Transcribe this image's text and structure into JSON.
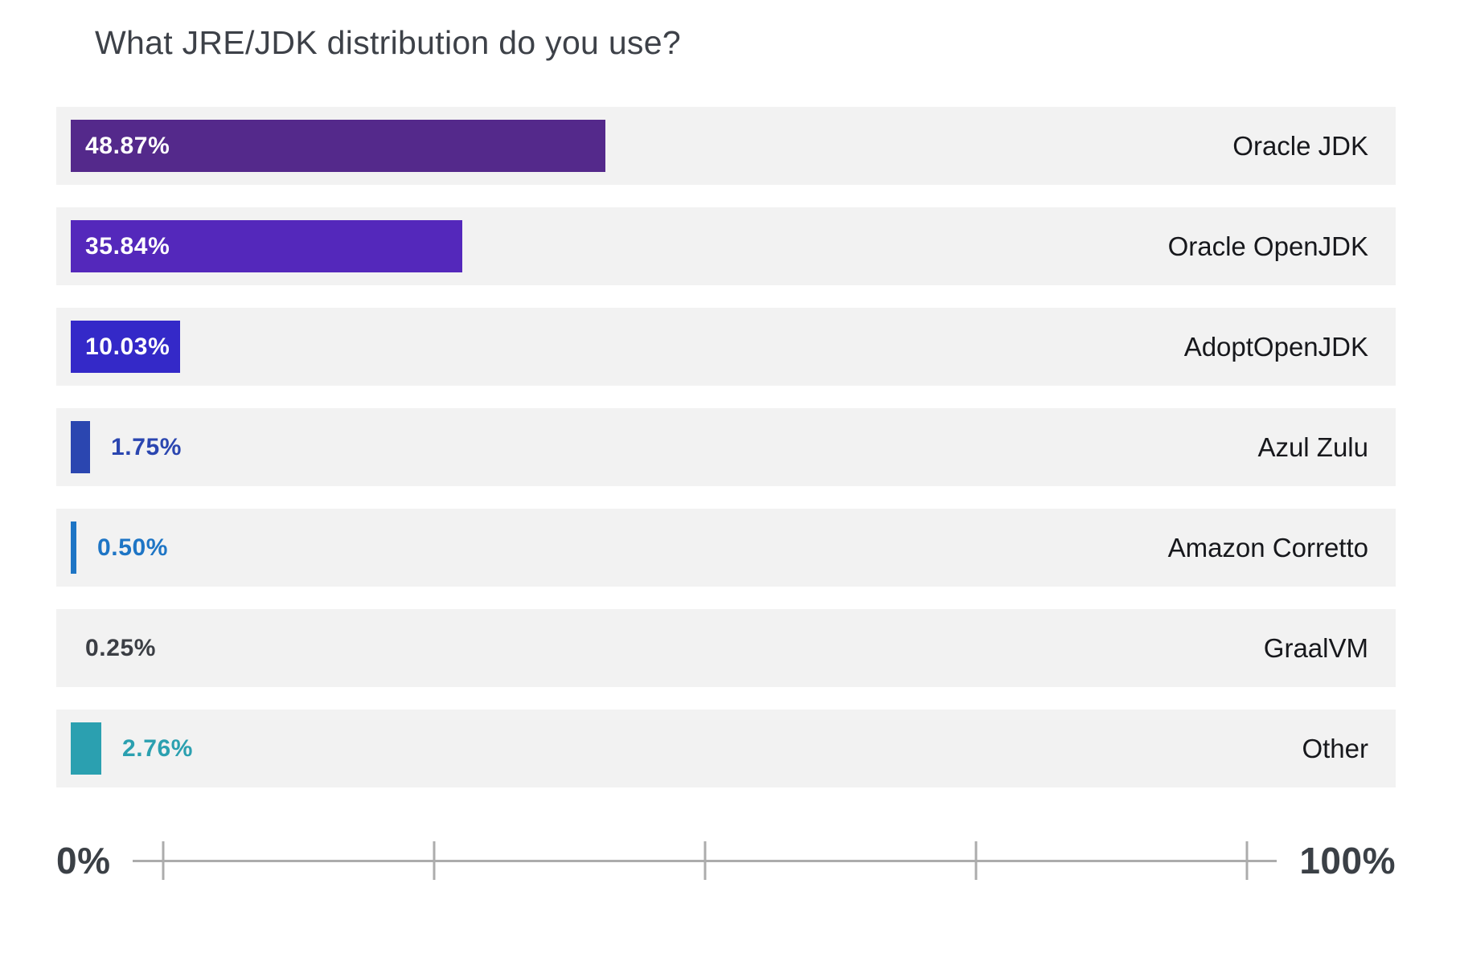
{
  "chart_data": {
    "type": "bar",
    "orientation": "horizontal",
    "title": "What JRE/JDK distribution do you use?",
    "xlabel": "",
    "ylabel": "",
    "categories": [
      "Oracle JDK",
      "Oracle OpenJDK",
      "AdoptOpenJDK",
      "Azul Zulu",
      "Amazon Corretto",
      "GraalVM",
      "Other"
    ],
    "values": [
      48.87,
      35.84,
      10.03,
      1.75,
      0.5,
      0.25,
      2.76
    ],
    "axis": {
      "min_label": "0%",
      "max_label": "100%",
      "range": [
        0,
        100
      ],
      "ticks_pct": [
        0,
        25,
        50,
        75,
        100
      ],
      "grid": false
    },
    "legend": "none",
    "items": [
      {
        "label": "Oracle JDK",
        "value": 48.87,
        "value_text": "48.87%",
        "bar_color": "#54298b",
        "value_label_position": "inside",
        "show_bar": true
      },
      {
        "label": "Oracle OpenJDK",
        "value": 35.84,
        "value_text": "35.84%",
        "bar_color": "#5428bb",
        "value_label_position": "inside",
        "show_bar": true
      },
      {
        "label": "AdoptOpenJDK",
        "value": 10.03,
        "value_text": "10.03%",
        "bar_color": "#3429c8",
        "value_label_position": "inside",
        "show_bar": true
      },
      {
        "label": "Azul Zulu",
        "value": 1.75,
        "value_text": "1.75%",
        "bar_color": "#2b46b0",
        "value_label_position": "outside",
        "show_bar": true
      },
      {
        "label": "Amazon Corretto",
        "value": 0.5,
        "value_text": "0.50%",
        "bar_color": "#1e75c5",
        "value_label_position": "outside",
        "show_bar": true
      },
      {
        "label": "GraalVM",
        "value": 0.25,
        "value_text": "0.25%",
        "bar_color": "#3b3e44",
        "value_label_position": "outside",
        "show_bar": false,
        "value_label_color": "#3b3e44"
      },
      {
        "label": "Other",
        "value": 2.76,
        "value_text": "2.76%",
        "bar_color": "#2ba0b0",
        "value_label_position": "outside",
        "show_bar": true
      }
    ],
    "colors": {
      "row_background": "#f2f2f2",
      "title_color": "#3d4148",
      "category_label_color": "#17181c",
      "axis_line_color": "#acacac",
      "axis_label_color": "#3b4046",
      "inside_value_color": "#ffffff"
    }
  }
}
